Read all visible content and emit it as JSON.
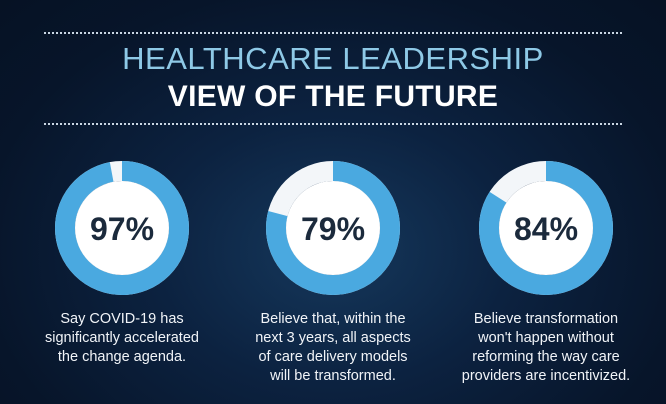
{
  "header": {
    "title_line1": "HEALTHCARE LEADERSHIP",
    "title_line2": "VIEW OF THE FUTURE"
  },
  "colors": {
    "ring_fill": "#4aa9e0",
    "ring_remaining": "#f3f6f9",
    "center": "#ffffff",
    "number": "#1b2a3c"
  },
  "chart_data": {
    "type": "pie",
    "title": "",
    "items": [
      {
        "value": 97,
        "label": "97%",
        "caption": "Say COVID-19 has\nsignificantly accelerated\nthe change agenda."
      },
      {
        "value": 79,
        "label": "79%",
        "caption": "Believe that, within the\nnext 3 years, all aspects\nof care delivery models\nwill be transformed."
      },
      {
        "value": 84,
        "label": "84%",
        "caption": "Believe transformation\nwon't happen without\nreforming the way care\nproviders are incentivized."
      }
    ]
  }
}
